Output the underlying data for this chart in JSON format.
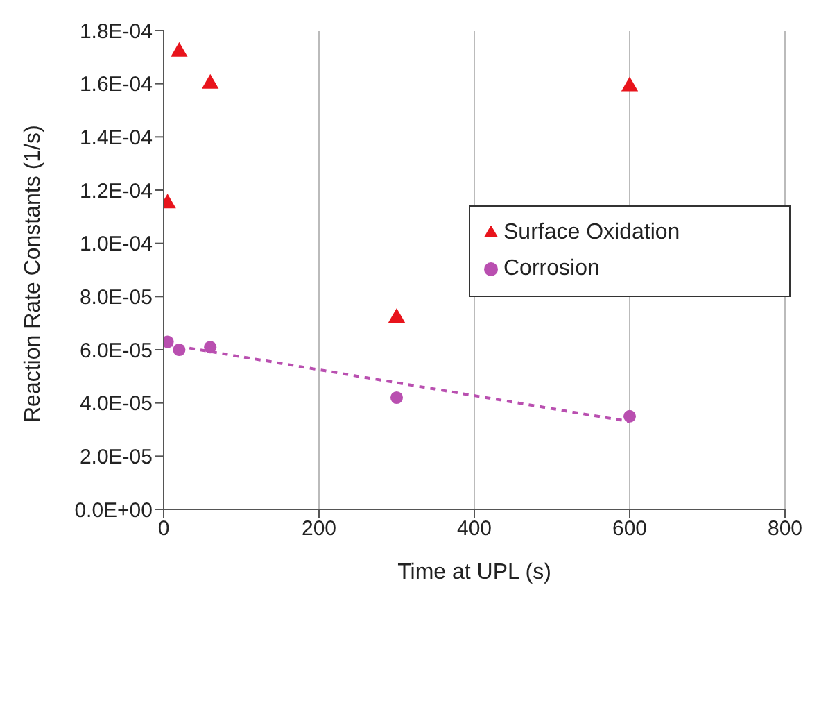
{
  "chart_data": {
    "type": "scatter",
    "xlabel": "Time at UPL (s)",
    "ylabel": "Reaction Rate Constants (1/s)",
    "xlim": [
      0,
      800
    ],
    "xticks": [
      0,
      200,
      400,
      600,
      800
    ],
    "ylim": [
      0,
      0.00018
    ],
    "yticks": [
      {
        "value": 0,
        "label": "0.0E+00"
      },
      {
        "value": 2e-05,
        "label": "2.0E-05"
      },
      {
        "value": 4e-05,
        "label": "4.0E-05"
      },
      {
        "value": 6e-05,
        "label": "6.0E-05"
      },
      {
        "value": 8e-05,
        "label": "8.0E-05"
      },
      {
        "value": 0.0001,
        "label": "1.0E-04"
      },
      {
        "value": 0.00012,
        "label": "1.2E-04"
      },
      {
        "value": 0.00014,
        "label": "1.4E-04"
      },
      {
        "value": 0.00016,
        "label": "1.6E-04"
      },
      {
        "value": 0.00018,
        "label": "1.8E-04"
      }
    ],
    "grid": "x",
    "legend": "right",
    "series": [
      {
        "name": "Surface Oxidation",
        "color": "#e8141c",
        "marker": "triangle",
        "x": [
          5,
          20,
          60,
          300,
          600
        ],
        "values": [
          0.000115,
          0.000172,
          0.00016,
          7.2e-05,
          0.000159
        ]
      },
      {
        "name": "Corrosion",
        "color": "#b94fb0",
        "marker": "circle",
        "x": [
          5,
          20,
          60,
          300,
          600
        ],
        "values": [
          6.3e-05,
          6e-05,
          6.1e-05,
          4.2e-05,
          3.5e-05
        ]
      },
      {
        "type": "line",
        "color": "#b94fb0",
        "marker": "none",
        "line_style": "dashed",
        "x": [
          5,
          600
        ],
        "values": [
          6.2e-05,
          3.3e-05
        ]
      }
    ]
  }
}
